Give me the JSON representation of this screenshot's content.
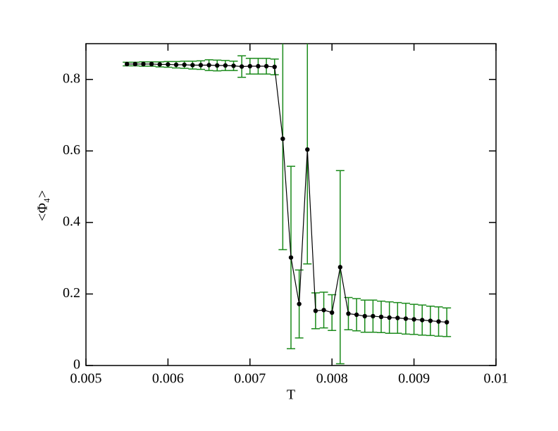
{
  "chart_data": {
    "type": "line",
    "xlabel": "T",
    "ylabel": "<Φ₄>",
    "x": [
      0.0055,
      0.0056,
      0.0057,
      0.0058,
      0.0059,
      0.006,
      0.0061,
      0.0062,
      0.0063,
      0.0064,
      0.0065,
      0.0066,
      0.0067,
      0.0068,
      0.0069,
      0.007,
      0.0071,
      0.0072,
      0.0073,
      0.0074,
      0.0075,
      0.0076,
      0.0077,
      0.0078,
      0.0079,
      0.008,
      0.0081,
      0.0082,
      0.0083,
      0.0084,
      0.0085,
      0.0086,
      0.0087,
      0.0088,
      0.0089,
      0.009,
      0.0091,
      0.0092,
      0.0093,
      0.0094
    ],
    "series": [
      {
        "color": "#000000",
        "error_color": "#1a8a1a",
        "values": [
          0.843,
          0.843,
          0.843,
          0.843,
          0.842,
          0.842,
          0.841,
          0.841,
          0.84,
          0.84,
          0.84,
          0.839,
          0.839,
          0.838,
          0.836,
          0.837,
          0.837,
          0.837,
          0.835,
          0.634,
          0.302,
          0.172,
          0.604,
          0.153,
          0.155,
          0.148,
          0.275,
          0.145,
          0.142,
          0.138,
          0.138,
          0.136,
          0.134,
          0.133,
          0.131,
          0.129,
          0.127,
          0.125,
          0.123,
          0.121
        ],
        "errors": [
          0.005,
          0.005,
          0.006,
          0.006,
          0.007,
          0.008,
          0.009,
          0.01,
          0.011,
          0.012,
          0.015,
          0.015,
          0.014,
          0.013,
          0.03,
          0.022,
          0.022,
          0.022,
          0.022,
          0.31,
          0.255,
          0.095,
          0.32,
          0.05,
          0.05,
          0.05,
          0.27,
          0.045,
          0.045,
          0.045,
          0.045,
          0.044,
          0.044,
          0.043,
          0.043,
          0.042,
          0.042,
          0.041,
          0.041,
          0.04
        ]
      }
    ],
    "xlim": [
      0.005,
      0.01
    ],
    "xticks": [
      0.005,
      0.006,
      0.007,
      0.008,
      0.009,
      0.01
    ],
    "ylim": [
      0,
      0.9
    ],
    "yticks": [
      0,
      0.2,
      0.4,
      0.6,
      0.8
    ]
  }
}
